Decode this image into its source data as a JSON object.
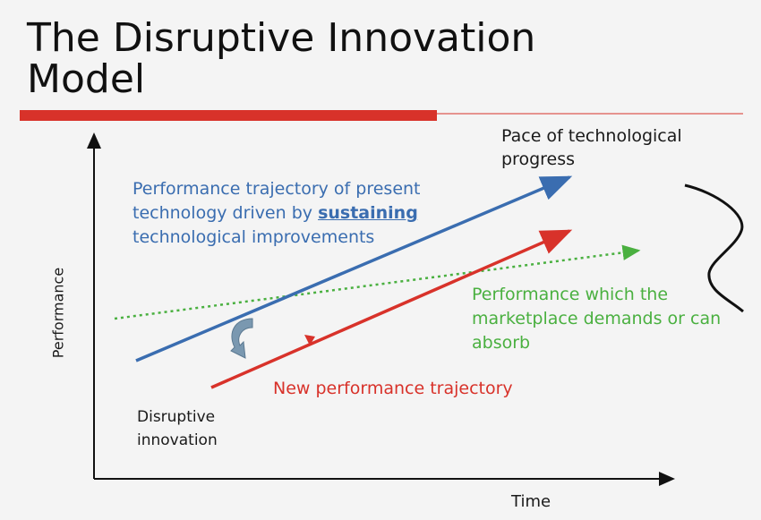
{
  "title": {
    "line1": "The Disruptive Innovation",
    "line2": "Model"
  },
  "axes": {
    "x_label": "Time",
    "y_label": "Performance"
  },
  "labels": {
    "blue_pre": "Performance trajectory of present technology driven by ",
    "blue_bold": "sustaining",
    "blue_post": " technological improvements",
    "pace": "Pace of technological progress",
    "market": "Performance which the marketplace demands or can absorb",
    "new_trajectory": "New performance trajectory",
    "disruptive": "Disruptive innovation"
  },
  "colors": {
    "title_bar": "#d8322a",
    "sustaining_line": "#3a6db0",
    "new_line": "#d8322a",
    "market_line": "#4ab040",
    "axis": "#111111",
    "curved_arrow": "#7a98b0"
  }
}
